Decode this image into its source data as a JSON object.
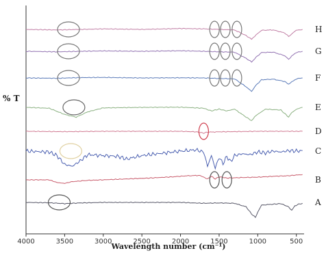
{
  "chart_data": {
    "type": "line",
    "title": "",
    "xlabel": "Wavelength number (cm⁻¹)",
    "ylabel": "% T",
    "xlim": [
      4000,
      400
    ],
    "x_ticks": [
      4000,
      3500,
      3000,
      2500,
      2000,
      1500,
      1000,
      500
    ],
    "grid": false,
    "series": [
      {
        "name": "H",
        "color": "#c07da4",
        "baseline": 0.955,
        "points": [
          [
            4000,
            0.955
          ],
          [
            3600,
            0.952
          ],
          [
            3300,
            0.955
          ],
          [
            3000,
            0.958
          ],
          [
            2500,
            0.955
          ],
          [
            2000,
            0.96
          ],
          [
            1700,
            0.958
          ],
          [
            1500,
            0.955
          ],
          [
            1300,
            0.952
          ],
          [
            1150,
            0.92
          ],
          [
            1080,
            0.9
          ],
          [
            1020,
            0.925
          ],
          [
            950,
            0.95
          ],
          [
            800,
            0.952
          ],
          [
            650,
            0.935
          ],
          [
            600,
            0.915
          ],
          [
            560,
            0.93
          ],
          [
            500,
            0.95
          ],
          [
            420,
            0.955
          ]
        ]
      },
      {
        "name": "G",
        "color": "#9070b0",
        "baseline": 0.955,
        "points": [
          [
            4000,
            0.955
          ],
          [
            3600,
            0.952
          ],
          [
            3300,
            0.955
          ],
          [
            3000,
            0.957
          ],
          [
            2500,
            0.955
          ],
          [
            2000,
            0.958
          ],
          [
            1700,
            0.955
          ],
          [
            1500,
            0.952
          ],
          [
            1300,
            0.95
          ],
          [
            1150,
            0.915
          ],
          [
            1080,
            0.895
          ],
          [
            1020,
            0.922
          ],
          [
            950,
            0.948
          ],
          [
            800,
            0.95
          ],
          [
            650,
            0.93
          ],
          [
            600,
            0.91
          ],
          [
            560,
            0.928
          ],
          [
            500,
            0.948
          ],
          [
            420,
            0.955
          ]
        ]
      },
      {
        "name": "F",
        "color": "#5a7ab8",
        "baseline": 0.955,
        "points": [
          [
            4000,
            0.955
          ],
          [
            3600,
            0.953
          ],
          [
            3300,
            0.957
          ],
          [
            3000,
            0.958
          ],
          [
            2500,
            0.955
          ],
          [
            2000,
            0.956
          ],
          [
            1700,
            0.955
          ],
          [
            1500,
            0.952
          ],
          [
            1300,
            0.95
          ],
          [
            1150,
            0.905
          ],
          [
            1080,
            0.88
          ],
          [
            1020,
            0.915
          ],
          [
            950,
            0.945
          ],
          [
            800,
            0.948
          ],
          [
            650,
            0.935
          ],
          [
            600,
            0.92
          ],
          [
            560,
            0.932
          ],
          [
            500,
            0.95
          ],
          [
            420,
            0.955
          ]
        ]
      },
      {
        "name": "E",
        "color": "#8ab080",
        "baseline": 0.955,
        "points": [
          [
            4000,
            0.955
          ],
          [
            3700,
            0.95
          ],
          [
            3500,
            0.915
          ],
          [
            3350,
            0.9
          ],
          [
            3200,
            0.93
          ],
          [
            3000,
            0.952
          ],
          [
            2500,
            0.955
          ],
          [
            2000,
            0.956
          ],
          [
            1700,
            0.95
          ],
          [
            1600,
            0.935
          ],
          [
            1500,
            0.945
          ],
          [
            1400,
            0.935
          ],
          [
            1300,
            0.945
          ],
          [
            1150,
            0.9
          ],
          [
            1080,
            0.88
          ],
          [
            1020,
            0.91
          ],
          [
            900,
            0.945
          ],
          [
            700,
            0.94
          ],
          [
            600,
            0.9
          ],
          [
            560,
            0.925
          ],
          [
            500,
            0.945
          ],
          [
            420,
            0.955
          ]
        ]
      },
      {
        "name": "D",
        "color": "#d07890",
        "baseline": 0.955,
        "points": [
          [
            4000,
            0.955
          ],
          [
            3500,
            0.953
          ],
          [
            3000,
            0.955
          ],
          [
            2500,
            0.955
          ],
          [
            2000,
            0.955
          ],
          [
            1800,
            0.952
          ],
          [
            1700,
            0.945
          ],
          [
            1650,
            0.95
          ],
          [
            1500,
            0.952
          ],
          [
            1000,
            0.955
          ],
          [
            500,
            0.955
          ],
          [
            420,
            0.955
          ]
        ]
      },
      {
        "name": "C",
        "color": "#4a5fb0",
        "baseline": 0.955,
        "points": [
          [
            4000,
            0.955
          ],
          [
            3700,
            0.95
          ],
          [
            3600,
            0.93
          ],
          [
            3500,
            0.88
          ],
          [
            3400,
            0.87
          ],
          [
            3300,
            0.9
          ],
          [
            3200,
            0.935
          ],
          [
            3000,
            0.93
          ],
          [
            2800,
            0.925
          ],
          [
            2700,
            0.91
          ],
          [
            2500,
            0.93
          ],
          [
            2200,
            0.945
          ],
          [
            2000,
            0.955
          ],
          [
            1800,
            0.962
          ],
          [
            1700,
            0.95
          ],
          [
            1650,
            0.87
          ],
          [
            1600,
            0.93
          ],
          [
            1550,
            0.86
          ],
          [
            1500,
            0.92
          ],
          [
            1450,
            0.885
          ],
          [
            1400,
            0.925
          ],
          [
            1350,
            0.895
          ],
          [
            1300,
            0.93
          ],
          [
            1200,
            0.94
          ],
          [
            1100,
            0.935
          ],
          [
            1000,
            0.95
          ],
          [
            900,
            0.945
          ],
          [
            800,
            0.955
          ],
          [
            700,
            0.95
          ],
          [
            600,
            0.958
          ],
          [
            500,
            0.955
          ],
          [
            420,
            0.958
          ]
        ]
      },
      {
        "name": "B",
        "color": "#c85a6a",
        "baseline": 0.955,
        "points": [
          [
            4000,
            0.955
          ],
          [
            3700,
            0.955
          ],
          [
            3600,
            0.94
          ],
          [
            3500,
            0.935
          ],
          [
            3400,
            0.945
          ],
          [
            3200,
            0.952
          ],
          [
            3000,
            0.955
          ],
          [
            2700,
            0.96
          ],
          [
            2400,
            0.965
          ],
          [
            2100,
            0.972
          ],
          [
            1900,
            0.978
          ],
          [
            1750,
            0.98
          ],
          [
            1650,
            0.96
          ],
          [
            1600,
            0.975
          ],
          [
            1550,
            0.96
          ],
          [
            1500,
            0.972
          ],
          [
            1400,
            0.965
          ],
          [
            1200,
            0.968
          ],
          [
            1000,
            0.97
          ],
          [
            800,
            0.975
          ],
          [
            600,
            0.978
          ],
          [
            500,
            0.982
          ],
          [
            420,
            0.985
          ]
        ]
      },
      {
        "name": "A",
        "color": "#555566",
        "baseline": 0.955,
        "points": [
          [
            4000,
            0.955
          ],
          [
            3700,
            0.953
          ],
          [
            3500,
            0.948
          ],
          [
            3300,
            0.952
          ],
          [
            3000,
            0.955
          ],
          [
            2500,
            0.955
          ],
          [
            2000,
            0.955
          ],
          [
            1700,
            0.95
          ],
          [
            1500,
            0.952
          ],
          [
            1300,
            0.95
          ],
          [
            1150,
            0.93
          ],
          [
            1080,
            0.89
          ],
          [
            1030,
            0.87
          ],
          [
            1000,
            0.9
          ],
          [
            950,
            0.94
          ],
          [
            800,
            0.945
          ],
          [
            700,
            0.948
          ],
          [
            600,
            0.93
          ],
          [
            560,
            0.91
          ],
          [
            520,
            0.935
          ],
          [
            470,
            0.945
          ],
          [
            420,
            0.95
          ]
        ]
      }
    ],
    "annotations": [
      {
        "series": "H",
        "type": "ellipse",
        "x": 3450,
        "color": "#777777"
      },
      {
        "series": "H",
        "type": "ellipse",
        "x": 1560,
        "color": "#777777"
      },
      {
        "series": "H",
        "type": "ellipse",
        "x": 1420,
        "color": "#777777"
      },
      {
        "series": "H",
        "type": "ellipse",
        "x": 1270,
        "color": "#777777"
      },
      {
        "series": "G",
        "type": "ellipse",
        "x": 3450,
        "color": "#777777"
      },
      {
        "series": "G",
        "type": "ellipse",
        "x": 1560,
        "color": "#777777"
      },
      {
        "series": "G",
        "type": "ellipse",
        "x": 1420,
        "color": "#777777"
      },
      {
        "series": "G",
        "type": "ellipse",
        "x": 1270,
        "color": "#777777"
      },
      {
        "series": "F",
        "type": "ellipse",
        "x": 3450,
        "color": "#777777"
      },
      {
        "series": "F",
        "type": "ellipse",
        "x": 1560,
        "color": "#777777"
      },
      {
        "series": "F",
        "type": "ellipse",
        "x": 1420,
        "color": "#777777"
      },
      {
        "series": "F",
        "type": "ellipse",
        "x": 1270,
        "color": "#777777"
      },
      {
        "series": "E",
        "type": "ellipse",
        "x": 3380,
        "color": "#666666"
      },
      {
        "series": "D",
        "type": "ellipse",
        "x": 1700,
        "color": "#d04050"
      },
      {
        "series": "C",
        "type": "ellipse",
        "x": 3420,
        "color": "#e0d0a0"
      },
      {
        "series": "B",
        "type": "ellipse",
        "x": 1560,
        "color": "#555555"
      },
      {
        "series": "B",
        "type": "ellipse",
        "x": 1400,
        "color": "#555555"
      },
      {
        "series": "A",
        "type": "ellipse",
        "x": 3570,
        "color": "#555555"
      }
    ]
  }
}
